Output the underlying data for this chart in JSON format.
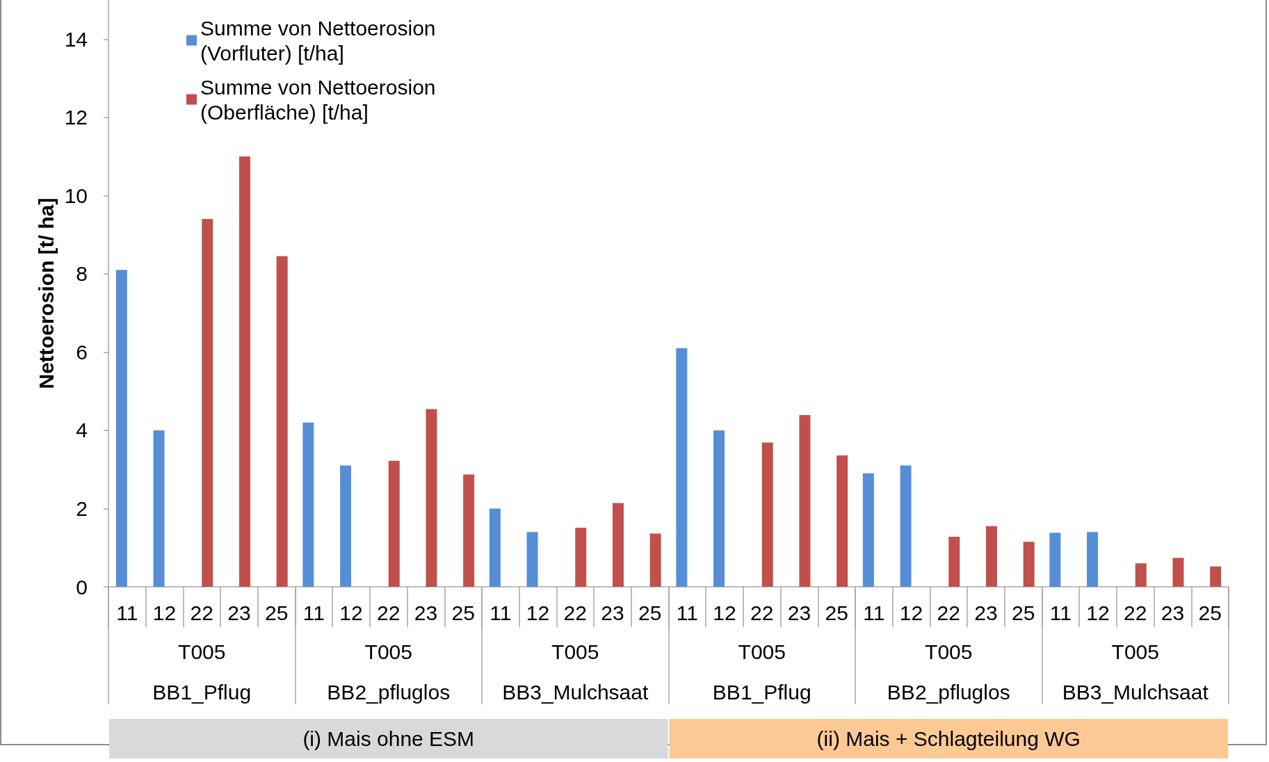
{
  "chart_data": {
    "type": "bar",
    "categories": [
      "11",
      "12",
      "22",
      "23",
      "25",
      "11",
      "12",
      "22",
      "23",
      "25",
      "11",
      "12",
      "22",
      "23",
      "25",
      "11",
      "12",
      "22",
      "23",
      "25",
      "11",
      "12",
      "22",
      "23",
      "25",
      "11",
      "12",
      "22",
      "23",
      "25"
    ],
    "series": [
      {
        "name": "Summe von Nettoerosion (Vorfluter) [t/ha]",
        "color": "#558ed5",
        "values": [
          8.1,
          4.0,
          null,
          null,
          null,
          4.2,
          3.1,
          null,
          null,
          null,
          2.0,
          1.4,
          null,
          null,
          null,
          6.1,
          4.0,
          null,
          null,
          null,
          2.9,
          3.1,
          null,
          null,
          null,
          1.38,
          1.4,
          null,
          null,
          null
        ]
      },
      {
        "name": "Summe von Nettoerosion (Oberfläche) [t/ha]",
        "color": "#c0504d",
        "values": [
          null,
          null,
          9.4,
          11.0,
          8.45,
          null,
          null,
          3.22,
          4.54,
          2.87,
          null,
          null,
          1.51,
          2.14,
          1.36,
          null,
          null,
          3.69,
          4.39,
          3.36,
          null,
          null,
          1.28,
          1.55,
          1.15,
          null,
          null,
          0.6,
          0.74,
          0.52
        ]
      }
    ],
    "ylabel": "Nettoerosion [t/ ha]",
    "ylim": [
      0,
      15
    ],
    "yticks": [
      0,
      2,
      4,
      6,
      8,
      10,
      12,
      14
    ],
    "legend": "top left",
    "annotations": [
      "T005",
      "T005",
      "T005",
      "T005",
      "T005",
      "T005",
      "BB1_Pflug",
      "BB2_pfluglos",
      "BB3_Mulchsaat",
      "BB1_Pflug",
      "BB2_pfluglos",
      "BB3_Mulchsaat",
      "(i) Mais ohne ESM",
      "(ii) Mais + Schlagteilung WG"
    ]
  }
}
